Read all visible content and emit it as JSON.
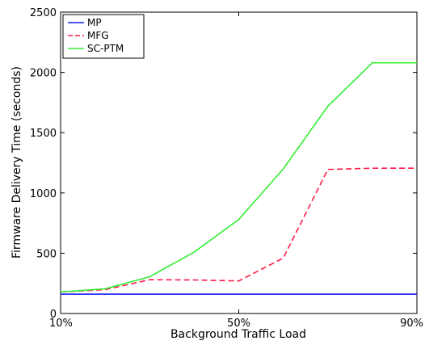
{
  "chart_data": {
    "type": "line",
    "title": "",
    "xlabel": "Background Traffic Load",
    "ylabel": "Firmware Delivery Time (seconds)",
    "x": [
      10,
      20,
      30,
      40,
      50,
      60,
      70,
      80,
      90
    ],
    "xticks": [
      {
        "value": 10,
        "label": "10%"
      },
      {
        "value": 50,
        "label": "50%"
      },
      {
        "value": 90,
        "label": "90%"
      }
    ],
    "yticks": [
      0,
      500,
      1000,
      1500,
      2000,
      2500
    ],
    "xlim": [
      10,
      90
    ],
    "ylim": [
      0,
      2500
    ],
    "grid": false,
    "legend_position": "top-left",
    "series": [
      {
        "name": "MP",
        "color": "#1a1aff",
        "dash": "solid",
        "values": [
          160,
          160,
          160,
          160,
          160,
          160,
          160,
          160,
          160
        ]
      },
      {
        "name": "MFG",
        "color": "#ff1a4a",
        "dash": "dashed",
        "values": [
          178,
          198,
          280,
          278,
          270,
          460,
          1195,
          1205,
          1205
        ]
      },
      {
        "name": "SC-PTM",
        "color": "#33ee33",
        "dash": "solid",
        "values": [
          178,
          205,
          305,
          510,
          780,
          1200,
          1720,
          2080,
          2080
        ]
      }
    ]
  }
}
